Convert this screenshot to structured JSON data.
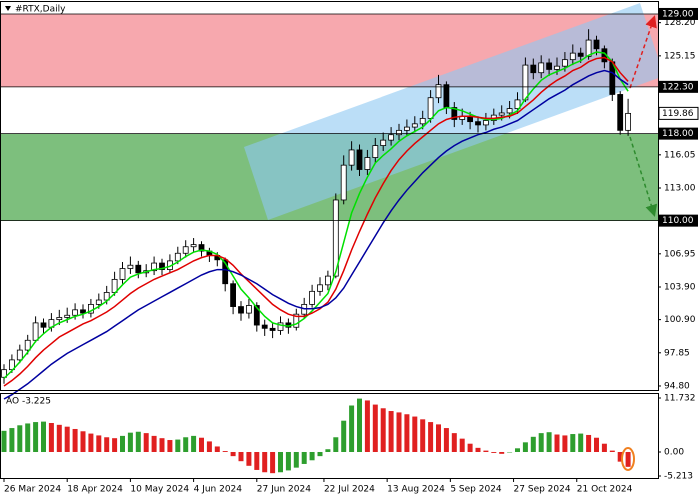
{
  "chart_data": {
    "type": "candlestick",
    "title": "#RTX,Daily",
    "xticks": [
      {
        "value": 0,
        "label": "26 Mar 2024"
      },
      {
        "value": 8,
        "label": "18 Apr 2024"
      },
      {
        "value": 16,
        "label": "10 May 2024"
      },
      {
        "value": 24,
        "label": "4 Jun 2024"
      },
      {
        "value": 32,
        "label": "27 Jun 2024"
      },
      {
        "value": 40.5,
        "label": "22 Jul 2024"
      },
      {
        "value": 48.5,
        "label": "13 Aug 2024"
      },
      {
        "value": 56.5,
        "label": "5 Sep 2024"
      },
      {
        "value": 64.5,
        "label": "27 Sep 2024"
      },
      {
        "value": 72.5,
        "label": "21 Oct 2024"
      }
    ],
    "ylim": [
      94.43,
      130.1
    ],
    "yticks": [
      {
        "value": 128.2,
        "label": "128.20"
      },
      {
        "value": 125.15,
        "label": "125.15"
      },
      {
        "value": 116.05,
        "label": "116.05"
      },
      {
        "value": 113.0,
        "label": "113.00"
      },
      {
        "value": 106.95,
        "label": "106.95"
      },
      {
        "value": 103.9,
        "label": "103.90"
      },
      {
        "value": 100.9,
        "label": "100.90"
      },
      {
        "value": 97.85,
        "label": "97.85"
      },
      {
        "value": 94.8,
        "label": "94.80"
      }
    ],
    "zones": [
      {
        "top": {
          "value": 129.0,
          "label": "129.00"
        },
        "bottom": {
          "value": 122.3,
          "label": "122.30"
        },
        "color": "#f7a8ae"
      },
      {
        "top": {
          "value": 118.0,
          "label": "118.00"
        },
        "bottom": {
          "value": 110.0,
          "label": "110.00"
        },
        "color": "#7dbf7d"
      }
    ],
    "last_label": {
      "value": 119.86,
      "label": "119.86"
    },
    "colors": {
      "bull": "#ffffff",
      "bear": "#000000"
    },
    "open": [
      95.6,
      96.3,
      97.2,
      98.1,
      99.0,
      100.6,
      100.2,
      100.9,
      101.1,
      101.3,
      101.8,
      101.5,
      102.3,
      102.7,
      103.4,
      104.6,
      105.6,
      105.9,
      105.2,
      105.4,
      106.1,
      105.5,
      106.3,
      107.0,
      107.6,
      107.8,
      107.2,
      106.8,
      106.4,
      104.2,
      102.1,
      101.5,
      102.2,
      100.4,
      100.1,
      99.9,
      100.6,
      100.2,
      101.4,
      102.3,
      103.5,
      104.1,
      104.9,
      111.9,
      115.1,
      116.5,
      114.7,
      115.8,
      116.9,
      117.4,
      117.9,
      118.3,
      118.6,
      118.9,
      119.4,
      121.3,
      122.5,
      120.4,
      119.3,
      119.6,
      119.1,
      118.8,
      119.2,
      119.7,
      119.9,
      120.3,
      121.1,
      124.3,
      123.6,
      124.5,
      123.9,
      124.2,
      124.8,
      125.4,
      125.1,
      126.6,
      125.8,
      124.6,
      121.6,
      118.3
    ],
    "high": [
      96.8,
      97.7,
      98.6,
      99.5,
      101.2,
      101.0,
      101.5,
      101.8,
      102.0,
      102.4,
      102.3,
      102.8,
      103.3,
      104.0,
      105.3,
      106.2,
      106.7,
      106.3,
      106.0,
      106.7,
      106.5,
      106.9,
      107.6,
      108.2,
      108.4,
      108.1,
      107.5,
      107.1,
      106.6,
      104.5,
      102.6,
      102.8,
      102.5,
      100.9,
      100.6,
      101.2,
      101.0,
      101.9,
      102.9,
      104.1,
      104.8,
      105.4,
      112.5,
      116.0,
      117.3,
      117.0,
      116.5,
      117.6,
      118.1,
      118.6,
      118.9,
      119.3,
      119.6,
      120.1,
      122.0,
      123.4,
      122.8,
      120.9,
      120.3,
      120.0,
      119.6,
      119.9,
      120.3,
      120.6,
      121.0,
      121.8,
      125.0,
      124.9,
      125.2,
      124.9,
      125.0,
      125.5,
      126.2,
      125.9,
      127.6,
      127.0,
      126.1,
      124.9,
      121.9,
      121.2
    ],
    "low": [
      95.0,
      96.0,
      96.9,
      97.7,
      98.8,
      99.6,
      99.8,
      100.4,
      100.6,
      100.9,
      101.0,
      101.1,
      101.9,
      102.3,
      103.1,
      104.2,
      105.1,
      104.7,
      104.8,
      105.0,
      105.0,
      105.2,
      106.0,
      106.6,
      107.1,
      106.7,
      106.2,
      105.8,
      103.5,
      101.4,
      100.8,
      101.0,
      99.8,
      99.4,
      99.2,
      99.5,
      99.6,
      99.9,
      101.0,
      102.0,
      103.1,
      103.6,
      104.7,
      111.5,
      114.6,
      114.1,
      114.2,
      115.3,
      116.4,
      116.9,
      117.4,
      117.8,
      118.1,
      118.4,
      119.0,
      120.8,
      119.8,
      118.6,
      118.8,
      118.4,
      118.1,
      118.3,
      118.8,
      119.2,
      119.4,
      119.8,
      120.9,
      123.0,
      123.1,
      123.3,
      123.4,
      123.7,
      124.3,
      124.5,
      124.8,
      125.2,
      124.0,
      121.0,
      117.9,
      117.8
    ],
    "close": [
      96.3,
      97.2,
      98.1,
      99.0,
      100.6,
      100.2,
      100.9,
      101.1,
      101.3,
      101.8,
      101.5,
      102.3,
      102.7,
      103.4,
      104.6,
      105.6,
      105.9,
      105.2,
      105.4,
      106.1,
      105.5,
      106.3,
      107.0,
      107.6,
      107.8,
      107.2,
      106.8,
      106.4,
      104.2,
      102.1,
      101.5,
      102.2,
      100.4,
      100.1,
      99.9,
      100.6,
      100.2,
      101.4,
      102.3,
      103.5,
      104.1,
      104.9,
      111.9,
      115.1,
      116.5,
      114.7,
      115.8,
      116.9,
      117.4,
      117.9,
      118.3,
      118.6,
      118.9,
      119.4,
      121.3,
      122.5,
      120.4,
      119.3,
      119.6,
      119.1,
      118.8,
      119.2,
      119.7,
      119.9,
      120.3,
      121.1,
      124.3,
      123.6,
      124.5,
      123.9,
      124.2,
      124.8,
      125.4,
      125.1,
      126.6,
      125.8,
      124.6,
      121.6,
      118.3,
      119.86
    ],
    "series": [
      {
        "color": "#00e000",
        "values": [
          95.5,
          96.2,
          97.0,
          97.9,
          98.9,
          99.6,
          100.2,
          100.6,
          100.9,
          101.2,
          101.4,
          101.7,
          102.1,
          102.6,
          103.3,
          104.1,
          104.8,
          105.1,
          105.3,
          105.5,
          105.6,
          105.8,
          106.2,
          106.7,
          107.1,
          107.3,
          107.2,
          106.9,
          106.1,
          104.9,
          103.7,
          102.9,
          102.0,
          101.2,
          100.6,
          100.4,
          100.3,
          100.5,
          101.0,
          101.7,
          102.5,
          103.3,
          105.3,
          108.0,
          110.7,
          112.5,
          114.0,
          115.3,
          116.0,
          116.6,
          117.3,
          117.8,
          118.2,
          118.6,
          119.3,
          120.1,
          120.4,
          120.3,
          120.1,
          119.8,
          119.5,
          119.3,
          119.3,
          119.4,
          119.7,
          120.1,
          121.2,
          122.1,
          122.9,
          123.4,
          123.7,
          124.0,
          124.4,
          124.7,
          125.2,
          125.5,
          125.4,
          124.6,
          123.0,
          121.9
        ]
      },
      {
        "color": "#e00000",
        "values": [
          94.8,
          95.3,
          95.9,
          96.6,
          97.4,
          98.1,
          98.7,
          99.3,
          99.7,
          100.1,
          100.5,
          100.8,
          101.2,
          101.6,
          102.1,
          102.7,
          103.3,
          103.8,
          104.2,
          104.6,
          104.9,
          105.2,
          105.5,
          105.9,
          106.3,
          106.6,
          106.8,
          106.8,
          106.5,
          105.9,
          105.1,
          104.4,
          103.7,
          103.0,
          102.3,
          101.8,
          101.4,
          101.2,
          101.2,
          101.5,
          101.9,
          102.5,
          103.7,
          105.4,
          107.3,
          109.0,
          110.6,
          112.1,
          113.4,
          114.6,
          115.6,
          116.4,
          117.1,
          117.7,
          118.3,
          118.9,
          119.3,
          119.5,
          119.6,
          119.6,
          119.5,
          119.4,
          119.4,
          119.5,
          119.6,
          119.9,
          120.5,
          121.1,
          121.8,
          122.4,
          122.9,
          123.3,
          123.8,
          124.1,
          124.6,
          124.9,
          125.0,
          124.6,
          123.6,
          122.8
        ]
      },
      {
        "color": "#0000a0",
        "values": [
          93.6,
          94.0,
          94.5,
          95.0,
          95.6,
          96.2,
          96.8,
          97.3,
          97.8,
          98.2,
          98.6,
          99.0,
          99.4,
          99.8,
          100.3,
          100.8,
          101.3,
          101.8,
          102.2,
          102.6,
          103.0,
          103.4,
          103.8,
          104.2,
          104.6,
          105.0,
          105.3,
          105.5,
          105.5,
          105.3,
          105.0,
          104.6,
          104.2,
          103.7,
          103.2,
          102.8,
          102.4,
          102.1,
          101.9,
          101.9,
          102.0,
          102.3,
          102.9,
          103.8,
          105.0,
          106.2,
          107.4,
          108.6,
          109.8,
          110.9,
          111.9,
          112.8,
          113.6,
          114.4,
          115.1,
          115.8,
          116.4,
          116.9,
          117.3,
          117.6,
          117.9,
          118.1,
          118.4,
          118.6,
          118.9,
          119.2,
          119.7,
          120.2,
          120.7,
          121.2,
          121.6,
          122.0,
          122.5,
          122.9,
          123.3,
          123.6,
          123.8,
          123.6,
          123.0,
          122.5
        ]
      }
    ],
    "oscillator": {
      "type": "bar",
      "label": "AO -3.225",
      "ylim": [
        -5.65,
        12.6
      ],
      "yticks": [
        {
          "value": 11.732,
          "label": "11.732"
        },
        {
          "value": 0,
          "label": "0.00"
        },
        {
          "value": -5.213,
          "label": "-5.213"
        }
      ],
      "colors": {
        "up": "#2e9e2e",
        "down": "#e02020"
      },
      "values": [
        4.6,
        5.2,
        5.8,
        6.2,
        6.5,
        6.6,
        6.3,
        5.9,
        5.5,
        5.0,
        4.5,
        4.0,
        3.6,
        3.2,
        3.0,
        3.5,
        4.2,
        4.4,
        4.1,
        3.5,
        3.0,
        2.6,
        2.7,
        3.2,
        3.5,
        3.1,
        2.3,
        1.2,
        0.2,
        -0.9,
        -2.0,
        -3.0,
        -3.9,
        -4.4,
        -4.6,
        -4.4,
        -4.0,
        -3.4,
        -2.6,
        -1.8,
        -0.9,
        0.6,
        3.2,
        6.8,
        10.1,
        11.6,
        11.2,
        10.3,
        9.5,
        8.9,
        8.6,
        8.2,
        7.7,
        7.1,
        6.5,
        6.0,
        5.2,
        4.1,
        2.9,
        1.8,
        0.9,
        0.3,
        -0.2,
        -0.4,
        -0.1,
        0.8,
        2.1,
        3.3,
        4.1,
        4.3,
        3.8,
        3.6,
        3.9,
        4.0,
        3.7,
        3.1,
        1.8,
        0.3,
        -2.1,
        -3.225
      ]
    }
  }
}
